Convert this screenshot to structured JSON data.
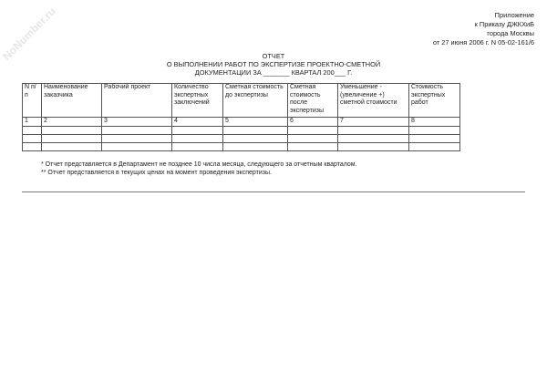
{
  "watermark": "NoNumber.ru",
  "appendix": [
    "Приложение",
    "к Приказу ДЖКХиБ",
    "города Москвы",
    "от 27 июня 2006 г. N 05-02-161/6"
  ],
  "title": [
    "ОТЧЕТ",
    "О ВЫПОЛНЕНИИ РАБОТ ПО ЭКСПЕРТИЗЕ ПРОЕКТНО-СМЕТНОЙ",
    "ДОКУМЕНТАЦИИ ЗА _______ КВАРТАЛ 200___ Г."
  ],
  "table": {
    "headers": [
      "N п/п",
      "Наименование заказчика",
      "Рабочий проект",
      "Количество экспертных заключений",
      "Сметная стоимость до экспертизы",
      "Сметная стоимость после экспертизы",
      "Уменьшение - (увеличение +) сметной стоимости",
      "Стоимость экспертных работ"
    ],
    "numbers": [
      "1",
      "2",
      "3",
      "4",
      "5",
      "6",
      "7",
      "8"
    ]
  },
  "notes": [
    "* Отчет представляется в Департамент не позднее 10 числа месяца, следующего за отчетным кварталом.",
    "** Отчет представляется в текущих ценах на момент проведения экспертизы."
  ]
}
